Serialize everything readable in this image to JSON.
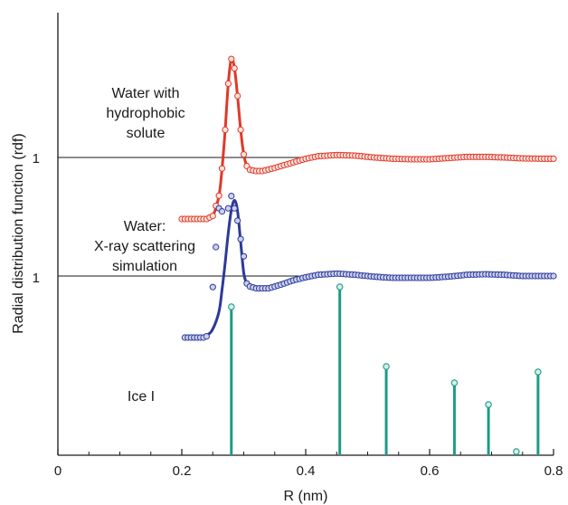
{
  "chart_data": {
    "type": "line",
    "xlabel": "R (nm)",
    "ylabel": "Radial distribution function (rdf)",
    "xlim": [
      0,
      0.8
    ],
    "x_ticks": [
      "0",
      "0.2",
      "0.4",
      "0.6",
      "0.8"
    ],
    "minor_x_step": 0.05,
    "reference_levels": [
      {
        "label": "1",
        "series": "solute"
      },
      {
        "label": "1",
        "series": "water"
      }
    ],
    "annotations": {
      "solute": [
        "Water with",
        "hydrophobic",
        "solute"
      ],
      "water": [
        "Water:",
        "X-ray scattering",
        "simulation"
      ],
      "ice": [
        "Ice I"
      ]
    },
    "series": [
      {
        "key": "solute",
        "color": "#e0392a",
        "marker_fill": "#fbe3dc",
        "points": [
          [
            0.2,
            0.0
          ],
          [
            0.22,
            0.0
          ],
          [
            0.24,
            0.0
          ],
          [
            0.25,
            0.05
          ],
          [
            0.26,
            0.38
          ],
          [
            0.265,
            0.82
          ],
          [
            0.27,
            1.45
          ],
          [
            0.275,
            2.2
          ],
          [
            0.28,
            2.6
          ],
          [
            0.285,
            2.45
          ],
          [
            0.29,
            2.0
          ],
          [
            0.295,
            1.45
          ],
          [
            0.3,
            1.05
          ],
          [
            0.305,
            0.86
          ],
          [
            0.31,
            0.8
          ],
          [
            0.32,
            0.78
          ],
          [
            0.33,
            0.78
          ],
          [
            0.35,
            0.83
          ],
          [
            0.38,
            0.92
          ],
          [
            0.4,
            0.98
          ],
          [
            0.42,
            1.02
          ],
          [
            0.45,
            1.04
          ],
          [
            0.48,
            1.03
          ],
          [
            0.51,
            1.0
          ],
          [
            0.54,
            0.98
          ],
          [
            0.57,
            0.97
          ],
          [
            0.6,
            0.97
          ],
          [
            0.63,
            0.99
          ],
          [
            0.66,
            1.01
          ],
          [
            0.69,
            1.01
          ],
          [
            0.72,
            1.0
          ],
          [
            0.75,
            0.985
          ],
          [
            0.78,
            0.98
          ],
          [
            0.8,
            0.98
          ]
        ]
      },
      {
        "key": "water",
        "color": "#2c3a9a",
        "marker_fill": "#cdd1ef",
        "points": [
          [
            0.205,
            0.0
          ],
          [
            0.22,
            0.01
          ],
          [
            0.24,
            0.04
          ],
          [
            0.25,
            0.14
          ],
          [
            0.26,
            0.42
          ],
          [
            0.265,
            0.78
          ],
          [
            0.27,
            1.22
          ],
          [
            0.275,
            1.7
          ],
          [
            0.28,
            2.07
          ],
          [
            0.285,
            2.23
          ],
          [
            0.29,
            2.06
          ],
          [
            0.295,
            1.55
          ],
          [
            0.3,
            1.05
          ],
          [
            0.305,
            0.88
          ],
          [
            0.31,
            0.83
          ],
          [
            0.32,
            0.8
          ],
          [
            0.34,
            0.8
          ],
          [
            0.36,
            0.86
          ],
          [
            0.38,
            0.93
          ],
          [
            0.4,
            0.98
          ],
          [
            0.42,
            1.02
          ],
          [
            0.45,
            1.04
          ],
          [
            0.48,
            1.02
          ],
          [
            0.51,
            0.99
          ],
          [
            0.54,
            0.97
          ],
          [
            0.57,
            0.97
          ],
          [
            0.6,
            0.97
          ],
          [
            0.63,
            0.99
          ],
          [
            0.66,
            1.02
          ],
          [
            0.69,
            1.03
          ],
          [
            0.72,
            1.02
          ],
          [
            0.75,
            1.0
          ],
          [
            0.78,
            1.0
          ],
          [
            0.8,
            1.0
          ]
        ],
        "marker_points": [
          [
            0.205,
            0.0
          ],
          [
            0.21,
            0.0
          ],
          [
            0.215,
            0.0
          ],
          [
            0.22,
            0.0
          ],
          [
            0.225,
            0.0
          ],
          [
            0.23,
            0.0
          ],
          [
            0.235,
            0.0
          ],
          [
            0.24,
            0.02
          ],
          [
            0.25,
            0.82
          ],
          [
            0.255,
            1.47
          ],
          [
            0.26,
            2.1
          ],
          [
            0.265,
            2.05
          ],
          [
            0.275,
            2.1
          ],
          [
            0.28,
            2.3
          ],
          [
            0.285,
            2.1
          ],
          [
            0.29,
            1.9
          ],
          [
            0.295,
            1.6
          ],
          [
            0.3,
            1.32
          ]
        ]
      }
    ],
    "ice_peaks": {
      "color": "#1e9b85",
      "marker_fill": "#d6f0ea",
      "x": [
        0.28,
        0.455,
        0.53,
        0.64,
        0.695,
        0.74,
        0.775
      ],
      "heights": [
        0.82,
        0.93,
        0.49,
        0.4,
        0.28,
        0.02,
        0.46
      ]
    }
  }
}
